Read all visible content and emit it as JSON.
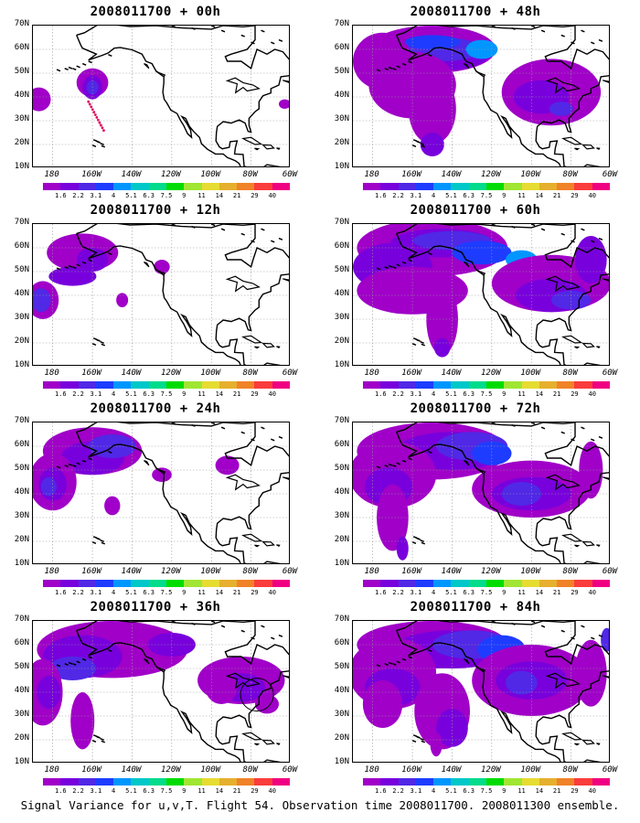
{
  "panels": [
    {
      "title": "2008011700 + 00h"
    },
    {
      "title": "2008011700 + 48h"
    },
    {
      "title": "2008011700 + 12h"
    },
    {
      "title": "2008011700 + 60h"
    },
    {
      "title": "2008011700 + 24h"
    },
    {
      "title": "2008011700 + 72h"
    },
    {
      "title": "2008011700 + 36h"
    },
    {
      "title": "2008011700 + 84h"
    }
  ],
  "axes": {
    "lat_labels": [
      "70N",
      "60N",
      "50N",
      "40N",
      "30N",
      "20N",
      "10N"
    ],
    "lon_labels": [
      "180",
      "160W",
      "140W",
      "120W",
      "100W",
      "80W",
      "60W"
    ]
  },
  "colorbar": {
    "labels": [
      "1.6",
      "2.2",
      "3.1",
      "4",
      "5.1",
      "6.3",
      "7.5",
      "9",
      "11",
      "14",
      "21",
      "29",
      "40"
    ],
    "colors": [
      "#a000c8",
      "#7800dc",
      "#5028e6",
      "#1e3cff",
      "#0096ff",
      "#00c8c8",
      "#00dc8c",
      "#00dc00",
      "#a0e632",
      "#e6dc32",
      "#e6af2d",
      "#f08228",
      "#fa3c3c",
      "#f00082"
    ]
  },
  "footer": "Signal Variance for u,v,T. Flight 54. Observation time 2008011700. 2008011300 ensemble."
}
